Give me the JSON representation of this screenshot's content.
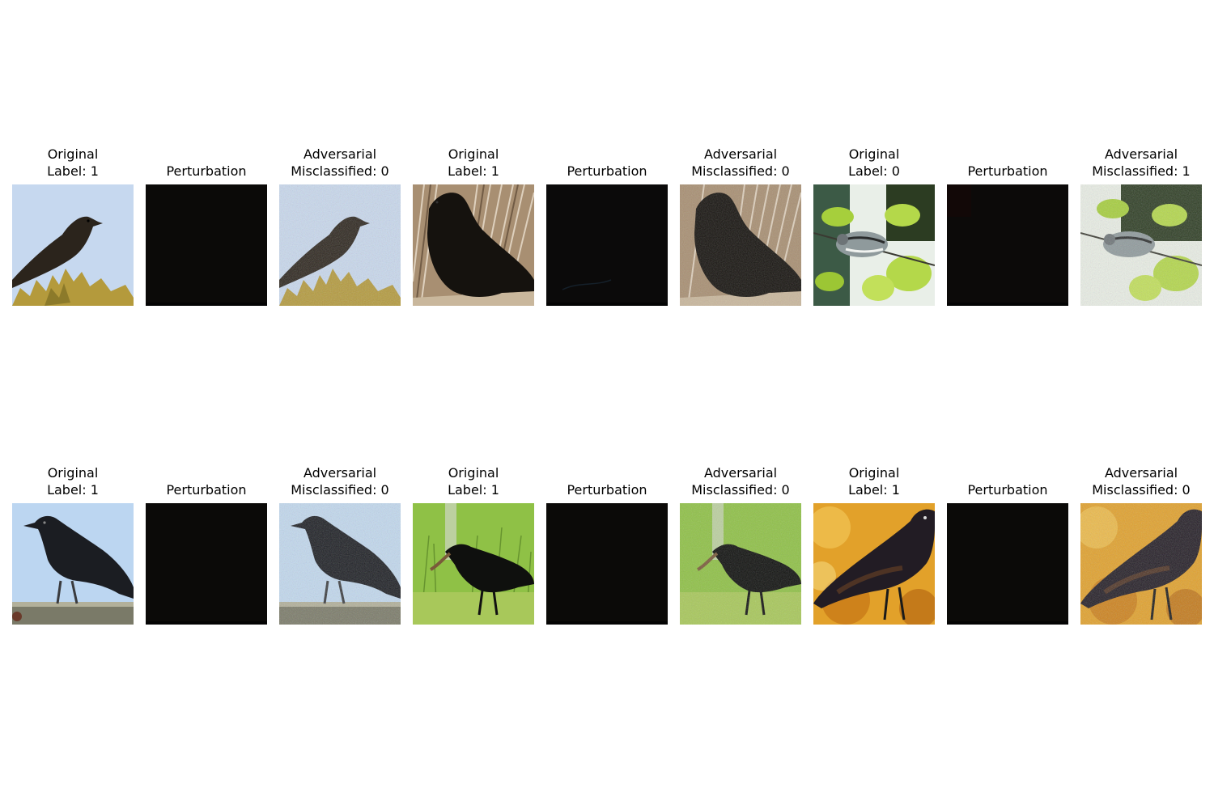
{
  "figure": {
    "rows": [
      {
        "panels": [
          {
            "kind": "original",
            "title": "Original",
            "subtitle": "Label: 1",
            "scene": "crow-sky-shrub"
          },
          {
            "kind": "perturbation",
            "title": "Perturbation",
            "subtitle": "",
            "scene": "perturbation"
          },
          {
            "kind": "adversarial",
            "title": "Adversarial",
            "subtitle": "Misclassified: 0",
            "scene": "crow-sky-shrub-noisy"
          },
          {
            "kind": "original",
            "title": "Original",
            "subtitle": "Label: 1",
            "scene": "crow-dry-grass"
          },
          {
            "kind": "perturbation",
            "title": "Perturbation",
            "subtitle": "",
            "scene": "perturbation"
          },
          {
            "kind": "adversarial",
            "title": "Adversarial",
            "subtitle": "Misclassified: 0",
            "scene": "crow-dry-grass-noisy"
          },
          {
            "kind": "original",
            "title": "Original",
            "subtitle": "Label: 0",
            "scene": "warbler-leaves"
          },
          {
            "kind": "perturbation",
            "title": "Perturbation",
            "subtitle": "",
            "scene": "perturbation"
          },
          {
            "kind": "adversarial",
            "title": "Adversarial",
            "subtitle": "Misclassified: 1",
            "scene": "warbler-leaves-noisy"
          }
        ]
      },
      {
        "panels": [
          {
            "kind": "original",
            "title": "Original",
            "subtitle": "Label: 1",
            "scene": "crow-railing"
          },
          {
            "kind": "perturbation",
            "title": "Perturbation",
            "subtitle": "",
            "scene": "perturbation"
          },
          {
            "kind": "adversarial",
            "title": "Adversarial",
            "subtitle": "Misclassified: 0",
            "scene": "crow-railing-noisy"
          },
          {
            "kind": "original",
            "title": "Original",
            "subtitle": "Label: 1",
            "scene": "crow-green-grass"
          },
          {
            "kind": "perturbation",
            "title": "Perturbation",
            "subtitle": "",
            "scene": "perturbation"
          },
          {
            "kind": "adversarial",
            "title": "Adversarial",
            "subtitle": "Misclassified: 0",
            "scene": "crow-green-grass-noisy"
          },
          {
            "kind": "original",
            "title": "Original",
            "subtitle": "Label: 1",
            "scene": "crow-autumn"
          },
          {
            "kind": "perturbation",
            "title": "Perturbation",
            "subtitle": "",
            "scene": "perturbation"
          },
          {
            "kind": "adversarial",
            "title": "Adversarial",
            "subtitle": "Misclassified: 0",
            "scene": "crow-autumn-noisy"
          }
        ]
      }
    ]
  },
  "colors": {
    "background": "#ffffff",
    "sky_light": "#c6d8ef",
    "sky_blue": "#bcd6f1",
    "crow": "#15120e",
    "shrub": "#b49a3c",
    "dry_grass": "#a88f72",
    "leaf_green": "#b4d84a",
    "grass_green": "#8fc146",
    "autumn": "#e2a12a",
    "perturbation": "#0b0a08"
  }
}
